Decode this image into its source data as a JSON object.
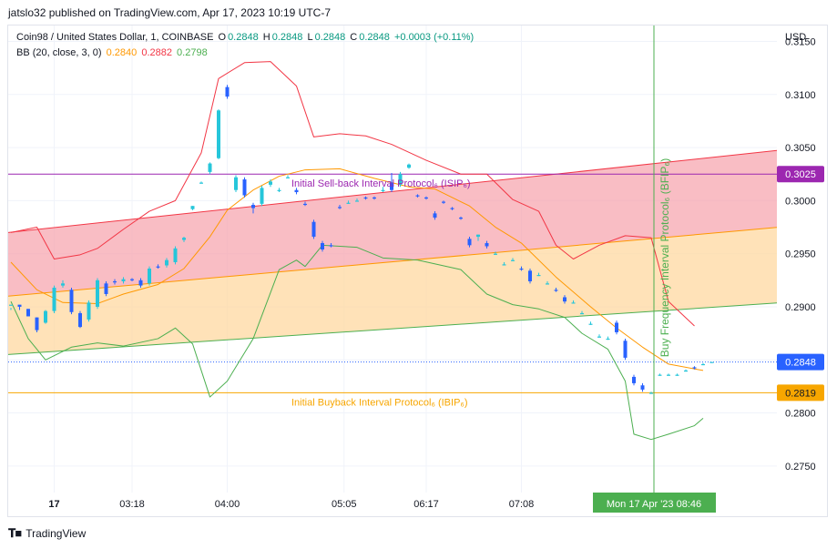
{
  "header": {
    "published": "jatslo32 published on TradingView.com, Apr 17, 2023 10:19 UTC-7"
  },
  "legend": {
    "symbol": "Coin98 / United States Dollar, 1, COINBASE",
    "o_label": "O",
    "o": "0.2848",
    "h_label": "H",
    "h": "0.2848",
    "l_label": "L",
    "l": "0.2848",
    "c_label": "C",
    "c": "0.2848",
    "change": "+0.0003 (+0.11%)",
    "bb_label": "BB (20, close, 3, 0)",
    "bb_basis": "0.2840",
    "bb_upper": "0.2882",
    "bb_lower": "0.2798"
  },
  "colors": {
    "up": "#26c6da",
    "down": "#2962ff",
    "bb_basis": "#ff9800",
    "bb_upper": "#f23645",
    "bb_lower": "#4caf50",
    "isip": "#9c27b0",
    "ibip": "#f7a600",
    "sell_zone": "#f7a7b0",
    "buy_zone": "#ffd8a0",
    "bfip": "#4caf50",
    "price_line": "#2962ff"
  },
  "annotations": {
    "isip": "Initial Sell-back Interval Protocol₆ (ISIP₆)",
    "ibip": "Initial Buyback Interval Protocol₆ (IBIP₆)",
    "bfip": "Buy Frequency Interval Protocol₆ (BFIP₆)"
  },
  "footer": {
    "brand": "TradingView"
  },
  "chart_data": {
    "type": "candlestick",
    "currency_label": "USD",
    "y_ticks": [
      "0.3150",
      "0.3100",
      "0.3050",
      "0.3000",
      "0.2950",
      "0.2900",
      "0.2850",
      "0.2800",
      "0.2750"
    ],
    "x_ticks": [
      "17",
      "03:18",
      "04:00",
      "05:05",
      "06:17",
      "07:08"
    ],
    "crosshair_label": "Mon 17 Apr '23   08:46",
    "price_labels": {
      "isip": "0.3025",
      "last": "0.2848",
      "ibip": "0.2819"
    },
    "levels": {
      "isip": 0.3025,
      "ibip": 0.2819,
      "last": 0.2848
    },
    "ylim": [
      0.2725,
      0.3165
    ],
    "channel": {
      "upper": [
        [
          0,
          0.297
        ],
        [
          142,
          0.3032
        ]
      ],
      "middle": [
        [
          0,
          0.291
        ],
        [
          142,
          0.2962
        ]
      ],
      "lower": [
        [
          0,
          0.2855
        ],
        [
          142,
          0.2894
        ]
      ]
    },
    "candles": [
      [
        0,
        0.2901,
        0.2902,
        0.2899,
        0.2897
      ],
      [
        2,
        0.2902,
        0.29,
        0.29,
        0.2897
      ],
      [
        4,
        0.2898,
        0.2891,
        0.2898,
        0.2891
      ],
      [
        6,
        0.289,
        0.2878,
        0.289,
        0.2876
      ],
      [
        8,
        0.2885,
        0.2896,
        0.2897,
        0.2884
      ],
      [
        10,
        0.2896,
        0.2918,
        0.292,
        0.2894
      ],
      [
        12,
        0.292,
        0.2922,
        0.2925,
        0.2918
      ],
      [
        14,
        0.2916,
        0.2895,
        0.2918,
        0.2893
      ],
      [
        16,
        0.2894,
        0.2881,
        0.2896,
        0.288
      ],
      [
        18,
        0.2888,
        0.2904,
        0.2906,
        0.2886
      ],
      [
        20,
        0.29,
        0.2925,
        0.2927,
        0.2898
      ],
      [
        22,
        0.2922,
        0.2912,
        0.2924,
        0.291
      ],
      [
        24,
        0.2924,
        0.2923,
        0.2926,
        0.2921
      ],
      [
        26,
        0.2924,
        0.2926,
        0.2928,
        0.2922
      ],
      [
        28,
        0.2926,
        0.2925,
        0.2927,
        0.2924
      ],
      [
        30,
        0.2925,
        0.292,
        0.2927,
        0.2918
      ],
      [
        32,
        0.2922,
        0.2936,
        0.2938,
        0.292
      ],
      [
        34,
        0.2938,
        0.2937,
        0.294,
        0.2936
      ],
      [
        36,
        0.2939,
        0.2944,
        0.2946,
        0.2937
      ],
      [
        38,
        0.2942,
        0.2955,
        0.2957,
        0.294
      ],
      [
        40,
        0.2963,
        0.2965,
        0.2966,
        0.2961
      ],
      [
        42,
        0.2992,
        0.2995,
        0.2995,
        0.2991
      ],
      [
        44,
        0.3017,
        0.3017,
        0.3018,
        0.3016
      ],
      [
        46,
        0.3027,
        0.3035,
        0.3036,
        0.3025
      ],
      [
        48,
        0.304,
        0.3085,
        0.3086,
        0.3039
      ],
      [
        50,
        0.3107,
        0.3098,
        0.3109,
        0.3096
      ],
      [
        52,
        0.301,
        0.3022,
        0.3024,
        0.3008
      ],
      [
        54,
        0.302,
        0.3005,
        0.3022,
        0.3003
      ],
      [
        56,
        0.2996,
        0.2993,
        0.2998,
        0.2988
      ],
      [
        58,
        0.2997,
        0.3012,
        0.3014,
        0.2995
      ],
      [
        60,
        0.3015,
        0.3018,
        0.302,
        0.3013
      ],
      [
        62,
        0.301,
        0.301,
        0.3012,
        0.3008
      ],
      [
        64,
        0.3022,
        0.3022,
        0.3024,
        0.3021
      ],
      [
        66,
        0.301,
        0.3008,
        0.3012,
        0.3006
      ],
      [
        68,
        0.2997,
        0.2996,
        0.2999,
        0.2995
      ],
      [
        70,
        0.298,
        0.2966,
        0.2982,
        0.2964
      ],
      [
        72,
        0.296,
        0.2954,
        0.2962,
        0.2952
      ],
      [
        74,
        0.2958,
        0.2957,
        0.296,
        0.2956
      ],
      [
        76,
        0.2994,
        0.2993,
        0.2996,
        0.2992
      ],
      [
        78,
        0.2998,
        0.2998,
        0.3,
        0.2997
      ],
      [
        80,
        0.3,
        0.3,
        0.3002,
        0.2999
      ],
      [
        82,
        0.3003,
        0.3002,
        0.3004,
        0.3001
      ],
      [
        84,
        0.3003,
        0.3002,
        0.3004,
        0.3001
      ],
      [
        86,
        0.301,
        0.301,
        0.3013,
        0.3008
      ],
      [
        88,
        0.3017,
        0.301,
        0.3026,
        0.3008
      ],
      [
        90,
        0.3015,
        0.3025,
        0.3027,
        0.3013
      ],
      [
        92,
        0.3031,
        0.3034,
        0.3035,
        0.303
      ],
      [
        94,
        0.3005,
        0.3004,
        0.3006,
        0.3003
      ],
      [
        96,
        0.3003,
        0.3002,
        0.3004,
        0.3001
      ],
      [
        98,
        0.2988,
        0.2984,
        0.299,
        0.2982
      ],
      [
        100,
        0.2999,
        0.2998,
        0.3,
        0.2997
      ],
      [
        102,
        0.2993,
        0.2992,
        0.2994,
        0.2991
      ],
      [
        104,
        0.2984,
        0.2983,
        0.2985,
        0.2982
      ],
      [
        106,
        0.2964,
        0.2958,
        0.2966,
        0.2956
      ],
      [
        108,
        0.2966,
        0.2968,
        0.2968,
        0.2962
      ],
      [
        110,
        0.296,
        0.2957,
        0.2962,
        0.2955
      ],
      [
        112,
        0.295,
        0.295,
        0.2952,
        0.2949
      ],
      [
        114,
        0.294,
        0.294,
        0.2942,
        0.2939
      ],
      [
        116,
        0.2944,
        0.2944,
        0.2946,
        0.2943
      ],
      [
        118,
        0.2936,
        0.2935,
        0.2938,
        0.2934
      ],
      [
        120,
        0.2934,
        0.2924,
        0.2936,
        0.2922
      ],
      [
        122,
        0.293,
        0.293,
        0.2932,
        0.2929
      ],
      [
        124,
        0.2922,
        0.2922,
        0.2924,
        0.2921
      ],
      [
        126,
        0.2916,
        0.2915,
        0.2918,
        0.2914
      ],
      [
        128,
        0.2909,
        0.2905,
        0.2911,
        0.2903
      ],
      [
        130,
        0.2904,
        0.2904,
        0.2906,
        0.2903
      ],
      [
        132,
        0.2894,
        0.2894,
        0.2896,
        0.2893
      ],
      [
        134,
        0.2884,
        0.2884,
        0.2886,
        0.2883
      ],
      [
        136,
        0.2872,
        0.2872,
        0.2874,
        0.2871
      ],
      [
        138,
        0.287,
        0.287,
        0.2872,
        0.2869
      ],
      [
        140,
        0.2885,
        0.2876,
        0.2887,
        0.2874
      ],
      [
        142,
        0.2868,
        0.2852,
        0.287,
        0.285
      ],
      [
        144,
        0.2834,
        0.2828,
        0.2836,
        0.2826
      ],
      [
        146,
        0.2826,
        0.2822,
        0.2828,
        0.282
      ],
      [
        148,
        0.2819,
        0.2819,
        0.282,
        0.2818
      ],
      [
        150,
        0.2836,
        0.2836,
        0.2837,
        0.2835
      ],
      [
        152,
        0.2836,
        0.2836,
        0.2837,
        0.2835
      ],
      [
        154,
        0.2836,
        0.2836,
        0.2837,
        0.2835
      ],
      [
        156,
        0.284,
        0.284,
        0.2841,
        0.2839
      ],
      [
        158,
        0.2843,
        0.2842,
        0.2844,
        0.2841
      ],
      [
        160,
        0.2846,
        0.2846,
        0.2847,
        0.2845
      ],
      [
        162,
        0.2848,
        0.2848,
        0.2848,
        0.2848
      ]
    ],
    "bb_basis": [
      [
        0,
        0.2942
      ],
      [
        6,
        0.2916
      ],
      [
        12,
        0.2904
      ],
      [
        20,
        0.2903
      ],
      [
        26,
        0.2912
      ],
      [
        34,
        0.2921
      ],
      [
        40,
        0.2936
      ],
      [
        46,
        0.2966
      ],
      [
        50,
        0.2991
      ],
      [
        56,
        0.301
      ],
      [
        62,
        0.3023
      ],
      [
        68,
        0.3029
      ],
      [
        76,
        0.303
      ],
      [
        84,
        0.3021
      ],
      [
        92,
        0.3013
      ],
      [
        98,
        0.3011
      ],
      [
        106,
        0.2995
      ],
      [
        112,
        0.2975
      ],
      [
        118,
        0.296
      ],
      [
        126,
        0.2928
      ],
      [
        134,
        0.29
      ],
      [
        140,
        0.288
      ],
      [
        146,
        0.2862
      ],
      [
        152,
        0.2846
      ],
      [
        160,
        0.284
      ]
    ],
    "bb_upper": [
      [
        0,
        0.297
      ],
      [
        6,
        0.2975
      ],
      [
        10,
        0.2945
      ],
      [
        16,
        0.2949
      ],
      [
        20,
        0.2955
      ],
      [
        26,
        0.2973
      ],
      [
        32,
        0.299
      ],
      [
        38,
        0.3
      ],
      [
        44,
        0.3045
      ],
      [
        48,
        0.3115
      ],
      [
        54,
        0.313
      ],
      [
        60,
        0.3131
      ],
      [
        66,
        0.3108
      ],
      [
        70,
        0.306
      ],
      [
        76,
        0.3063
      ],
      [
        82,
        0.3061
      ],
      [
        88,
        0.3053
      ],
      [
        96,
        0.3038
      ],
      [
        104,
        0.3025
      ],
      [
        110,
        0.3025
      ],
      [
        116,
        0.3001
      ],
      [
        122,
        0.299
      ],
      [
        126,
        0.2958
      ],
      [
        130,
        0.2945
      ],
      [
        136,
        0.2958
      ],
      [
        142,
        0.2967
      ],
      [
        148,
        0.2965
      ],
      [
        152,
        0.2905
      ],
      [
        158,
        0.2882
      ]
    ],
    "bb_lower": [
      [
        0,
        0.2905
      ],
      [
        4,
        0.287
      ],
      [
        8,
        0.285
      ],
      [
        14,
        0.2862
      ],
      [
        20,
        0.2866
      ],
      [
        26,
        0.2863
      ],
      [
        34,
        0.287
      ],
      [
        38,
        0.288
      ],
      [
        42,
        0.2865
      ],
      [
        46,
        0.2815
      ],
      [
        50,
        0.283
      ],
      [
        56,
        0.287
      ],
      [
        62,
        0.2935
      ],
      [
        66,
        0.2944
      ],
      [
        68,
        0.2938
      ],
      [
        72,
        0.2958
      ],
      [
        80,
        0.2956
      ],
      [
        86,
        0.2946
      ],
      [
        94,
        0.2944
      ],
      [
        104,
        0.2935
      ],
      [
        110,
        0.2912
      ],
      [
        116,
        0.2902
      ],
      [
        122,
        0.2898
      ],
      [
        128,
        0.289
      ],
      [
        132,
        0.2875
      ],
      [
        138,
        0.286
      ],
      [
        142,
        0.283
      ],
      [
        144,
        0.278
      ],
      [
        148,
        0.2775
      ],
      [
        152,
        0.278
      ],
      [
        158,
        0.2788
      ],
      [
        160,
        0.2795
      ]
    ]
  }
}
